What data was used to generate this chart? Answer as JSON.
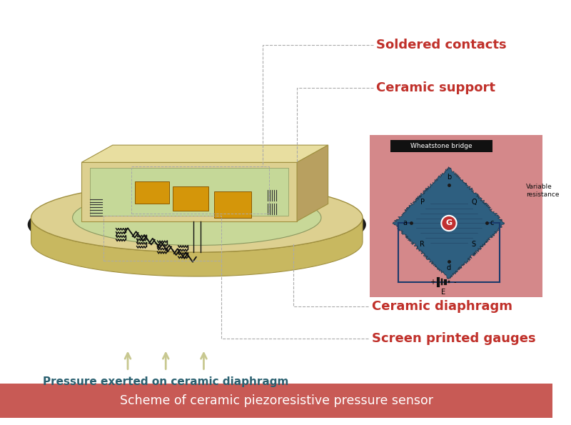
{
  "title": "Scheme of ceramic piezoresistive pressure sensor",
  "title_bg": "#c85a55",
  "title_color": "#ffffff",
  "bg_color": "#ffffff",
  "label_color_red": "#c0302a",
  "label_color_teal": "#2a6070",
  "labels": {
    "soldered_contacts": "Soldered contacts",
    "ceramic_support": "Ceramic support",
    "ceramic_diaphragm": "Ceramic diaphragm",
    "screen_printed": "Screen printed gauges",
    "pressure_exerted": "Pressure exerted on ceramic diaphragm"
  },
  "wheatstone_bg": "#d4888a",
  "wheatstone_diamond_color": "#2e5f80",
  "galvanometer_color": "#c03030",
  "circuit_line_color": "#1a3a6b",
  "disk_outer_color": "#ddd090",
  "disk_inner_color": "#c8d898",
  "disk_shadow_color": "#1a1a1a",
  "support_top_color": "#e8dea0",
  "support_face_color": "#ddd090",
  "support_side_color": "#b8a060",
  "green_area_color": "#c5d898",
  "resistor_color": "#d4960a",
  "zigzag_color": "#111111",
  "annotation_line_color": "#aaaaaa",
  "arrow_color": "#c8c890",
  "battery_color": "#111111",
  "circuit_color": "#1a3a6b"
}
